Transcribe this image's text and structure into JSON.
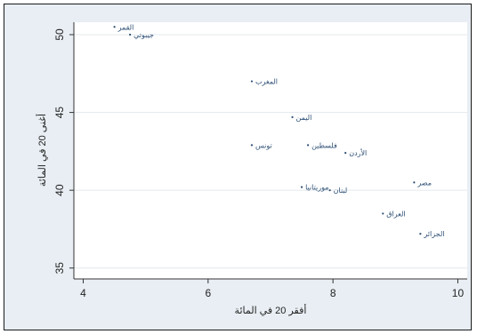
{
  "chart_data": {
    "type": "scatter",
    "title": "",
    "xlabel": "أفقر 20 في المائة",
    "ylabel": "أغنى 20 في المائة",
    "xlim": [
      3.85,
      10.15
    ],
    "ylim": [
      34.3,
      50.8
    ],
    "xticks": [
      4,
      6,
      8,
      10
    ],
    "yticks": [
      35,
      40,
      45,
      50
    ],
    "grid": "horizontal",
    "colors": {
      "point": "#2b4d73",
      "plot_bg": "#ffffff",
      "frame_bg": "#e8eef3",
      "grid": "#e3e9ee"
    },
    "points": [
      {
        "label": "القمر",
        "x": 4.5,
        "y": 50.5
      },
      {
        "label": "جيبوتي",
        "x": 4.75,
        "y": 50.0
      },
      {
        "label": "المغرب",
        "x": 6.7,
        "y": 47.0
      },
      {
        "label": "اليمن",
        "x": 7.35,
        "y": 44.7
      },
      {
        "label": "تونس",
        "x": 6.7,
        "y": 42.9
      },
      {
        "label": "فلسطين",
        "x": 7.6,
        "y": 42.9
      },
      {
        "label": "الأردن",
        "x": 8.2,
        "y": 42.4
      },
      {
        "label": "موريتانيا",
        "x": 7.5,
        "y": 40.2
      },
      {
        "label": "لبنان",
        "x": 7.95,
        "y": 40.0
      },
      {
        "label": "مصر",
        "x": 9.3,
        "y": 40.5
      },
      {
        "label": "العراق",
        "x": 8.8,
        "y": 38.5
      },
      {
        "label": "الجزائر",
        "x": 9.4,
        "y": 37.2
      }
    ]
  }
}
